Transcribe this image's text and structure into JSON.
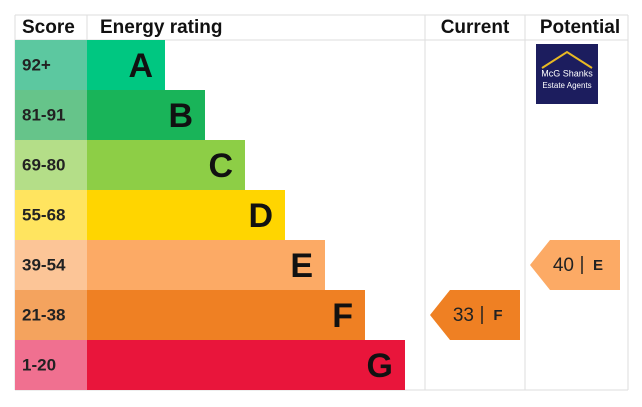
{
  "header": {
    "score": "Score",
    "rating": "Energy rating",
    "current": "Current",
    "potential": "Potential"
  },
  "rows": [
    {
      "score": "92+",
      "letter": "A",
      "bar_color": "#00c781",
      "score_color": "#5cc8a0"
    },
    {
      "score": "81-91",
      "letter": "B",
      "bar_color": "#19b459",
      "score_color": "#66c48a"
    },
    {
      "score": "69-80",
      "letter": "C",
      "bar_color": "#8dce46",
      "score_color": "#b4de88"
    },
    {
      "score": "55-68",
      "letter": "D",
      "bar_color": "#ffd500",
      "score_color": "#ffe45f"
    },
    {
      "score": "39-54",
      "letter": "E",
      "bar_color": "#fcaa65",
      "score_color": "#fcc597"
    },
    {
      "score": "21-38",
      "letter": "F",
      "bar_color": "#ef8023",
      "score_color": "#f4a35e"
    },
    {
      "score": "1-20",
      "letter": "G",
      "bar_color": "#e9153b",
      "score_color": "#f07090"
    }
  ],
  "current": {
    "value": "33",
    "letter": "F"
  },
  "potential": {
    "value": "40",
    "letter": "E"
  },
  "logo": {
    "line1": "McG Shanks",
    "line2": "Estate Agents"
  }
}
